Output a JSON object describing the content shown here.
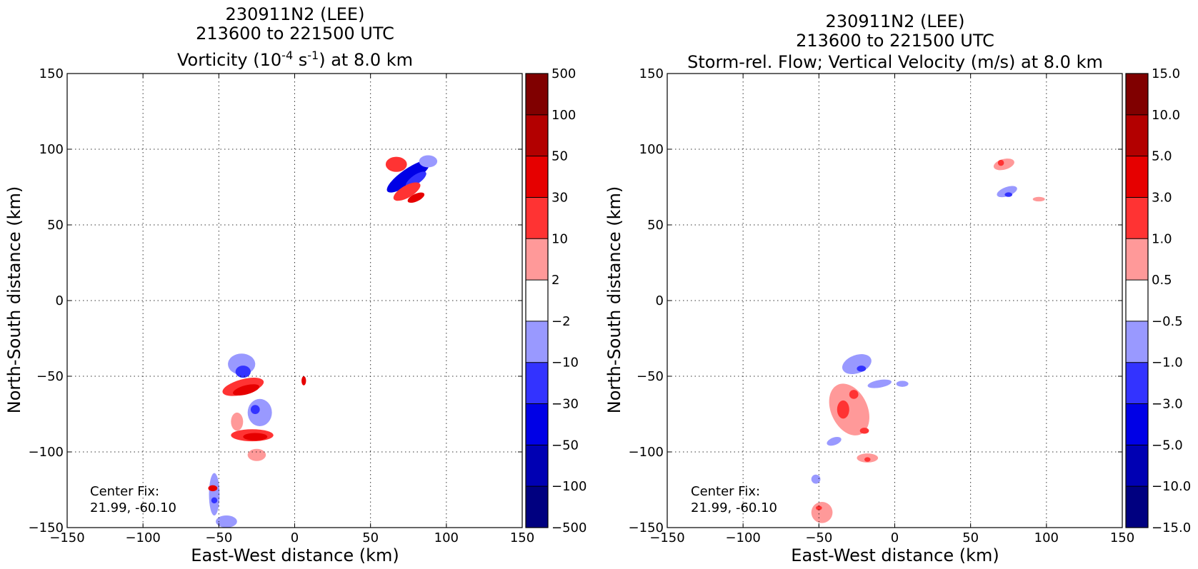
{
  "chart_data": [
    {
      "type": "heatmap",
      "title_lines": [
        "230911N2 (LEE)",
        "213600 to 221500 UTC"
      ],
      "title_line3": {
        "pre": "Vorticity (10",
        "sup1": "-4",
        "mid": " s",
        "sup2": "-1",
        "post": ") at 8.0 km"
      },
      "xlabel": "East-West distance (km)",
      "ylabel": "North-South distance (km)",
      "xlim": [
        -150,
        150
      ],
      "ylim": [
        -150,
        150
      ],
      "xticks": [
        -150,
        -100,
        -50,
        0,
        50,
        100,
        150
      ],
      "yticks": [
        -150,
        -100,
        -50,
        0,
        50,
        100,
        150
      ],
      "xtick_labels": [
        "−150",
        "−100",
        "−50",
        "0",
        "50",
        "100",
        "150"
      ],
      "ytick_labels": [
        "−150",
        "−100",
        "−50",
        "0",
        "50",
        "100",
        "150"
      ],
      "grid": true,
      "colorbar": {
        "levels": [
          "−500",
          "−100",
          "−50",
          "−30",
          "−10",
          "−2",
          "2",
          "10",
          "30",
          "50",
          "100",
          "500"
        ],
        "colors": [
          "#000080",
          "#0000b3",
          "#0000e6",
          "#3333ff",
          "#9999ff",
          "#ffffff",
          "#ff9999",
          "#ff3333",
          "#e60000",
          "#b30000",
          "#800000"
        ]
      },
      "annotation": [
        "Center Fix:",
        "21.99, -60.10"
      ],
      "features": [
        {
          "cx": 75,
          "cy": 82,
          "rx": 17,
          "ry": 5,
          "rot": -35,
          "level": 2
        },
        {
          "cx": 80,
          "cy": 80,
          "rx": 8,
          "ry": 3,
          "rot": -35,
          "level": 3
        },
        {
          "cx": 67,
          "cy": 90,
          "rx": 7,
          "ry": 5,
          "rot": 0,
          "level": 7
        },
        {
          "cx": 74,
          "cy": 72,
          "rx": 10,
          "ry": 4,
          "rot": -30,
          "level": 7
        },
        {
          "cx": 80,
          "cy": 68,
          "rx": 6,
          "ry": 2.5,
          "rot": -25,
          "level": 8
        },
        {
          "cx": 88,
          "cy": 92,
          "rx": 6,
          "ry": 4,
          "rot": 0,
          "level": 4
        },
        {
          "cx": -35,
          "cy": -42,
          "rx": 9,
          "ry": 7,
          "rot": 0,
          "level": 4
        },
        {
          "cx": -34,
          "cy": -47,
          "rx": 5,
          "ry": 4,
          "rot": 0,
          "level": 3
        },
        {
          "cx": -34,
          "cy": -57,
          "rx": 14,
          "ry": 5,
          "rot": -15,
          "level": 7
        },
        {
          "cx": -32,
          "cy": -59,
          "rx": 9,
          "ry": 3,
          "rot": -15,
          "level": 8
        },
        {
          "cx": -23,
          "cy": -74,
          "rx": 8,
          "ry": 9,
          "rot": 0,
          "level": 4
        },
        {
          "cx": -26,
          "cy": -72,
          "rx": 3,
          "ry": 3,
          "rot": 0,
          "level": 3
        },
        {
          "cx": -28,
          "cy": -89,
          "rx": 14,
          "ry": 4,
          "rot": 0,
          "level": 7
        },
        {
          "cx": -26,
          "cy": -90,
          "rx": 8,
          "ry": 2.5,
          "rot": 0,
          "level": 8
        },
        {
          "cx": -25,
          "cy": -102,
          "rx": 6,
          "ry": 4,
          "rot": 0,
          "level": 6
        },
        {
          "cx": -38,
          "cy": -80,
          "rx": 4,
          "ry": 6,
          "rot": 0,
          "level": 6
        },
        {
          "cx": 6,
          "cy": -53,
          "rx": 1.5,
          "ry": 3,
          "rot": 0,
          "level": 8
        },
        {
          "cx": -53,
          "cy": -128,
          "rx": 3.5,
          "ry": 14,
          "rot": 0,
          "level": 4
        },
        {
          "cx": -54,
          "cy": -124,
          "rx": 3,
          "ry": 2,
          "rot": 0,
          "level": 8
        },
        {
          "cx": -53,
          "cy": -132,
          "rx": 2,
          "ry": 2,
          "rot": 0,
          "level": 3
        },
        {
          "cx": -45,
          "cy": -146,
          "rx": 7,
          "ry": 4,
          "rot": 0,
          "level": 4
        }
      ]
    },
    {
      "type": "heatmap",
      "title_lines": [
        "230911N2 (LEE)",
        "213600 to 221500 UTC",
        "Storm-rel. Flow; Vertical Velocity (m/s) at 8.0 km"
      ],
      "xlabel": "East-West distance (km)",
      "ylabel": "North-South distance (km)",
      "xlim": [
        -150,
        150
      ],
      "ylim": [
        -150,
        150
      ],
      "xticks": [
        -150,
        -100,
        -50,
        0,
        50,
        100,
        150
      ],
      "yticks": [
        -150,
        -100,
        -50,
        0,
        50,
        100,
        150
      ],
      "xtick_labels": [
        "−150",
        "−100",
        "−50",
        "0",
        "50",
        "100",
        "150"
      ],
      "ytick_labels": [
        "−150",
        "−100",
        "−50",
        "0",
        "50",
        "100",
        "150"
      ],
      "grid": true,
      "colorbar": {
        "levels": [
          "−15.0",
          "−10.0",
          "−5.0",
          "−3.0",
          "−1.0",
          "−0.5",
          "0.5",
          "1.0",
          "3.0",
          "5.0",
          "10.0",
          "15.0"
        ],
        "colors": [
          "#000080",
          "#0000b3",
          "#0000e6",
          "#3333ff",
          "#9999ff",
          "#ffffff",
          "#ff9999",
          "#ff3333",
          "#e60000",
          "#b30000",
          "#800000"
        ]
      },
      "annotation": [
        "Center Fix:",
        "21.99, -60.10"
      ],
      "features": [
        {
          "cx": 72,
          "cy": 90,
          "rx": 7,
          "ry": 3.5,
          "rot": -15,
          "level": 6
        },
        {
          "cx": 70,
          "cy": 91,
          "rx": 2,
          "ry": 2,
          "rot": 0,
          "level": 7
        },
        {
          "cx": 74,
          "cy": 72,
          "rx": 7,
          "ry": 3,
          "rot": -20,
          "level": 4
        },
        {
          "cx": 75,
          "cy": 70,
          "rx": 2.5,
          "ry": 1.5,
          "rot": 0,
          "level": 3
        },
        {
          "cx": 95,
          "cy": 67,
          "rx": 4,
          "ry": 1.5,
          "rot": 0,
          "level": 6
        },
        {
          "cx": -30,
          "cy": -72,
          "rx": 12,
          "ry": 18,
          "rot": -25,
          "level": 6
        },
        {
          "cx": -34,
          "cy": -72,
          "rx": 4,
          "ry": 6,
          "rot": 0,
          "level": 7
        },
        {
          "cx": -27,
          "cy": -62,
          "rx": 3,
          "ry": 3,
          "rot": 0,
          "level": 7
        },
        {
          "cx": -20,
          "cy": -86,
          "rx": 3,
          "ry": 2,
          "rot": 0,
          "level": 7
        },
        {
          "cx": -25,
          "cy": -42,
          "rx": 10,
          "ry": 6,
          "rot": -20,
          "level": 4
        },
        {
          "cx": -22,
          "cy": -45,
          "rx": 3,
          "ry": 2,
          "rot": 0,
          "level": 3
        },
        {
          "cx": -40,
          "cy": -93,
          "rx": 5,
          "ry": 2.5,
          "rot": -20,
          "level": 4
        },
        {
          "cx": -18,
          "cy": -104,
          "rx": 7,
          "ry": 3,
          "rot": 0,
          "level": 6
        },
        {
          "cx": -18,
          "cy": -105,
          "rx": 2,
          "ry": 1.5,
          "rot": 0,
          "level": 7
        },
        {
          "cx": -10,
          "cy": -55,
          "rx": 8,
          "ry": 2.5,
          "rot": -10,
          "level": 4
        },
        {
          "cx": 5,
          "cy": -55,
          "rx": 4,
          "ry": 2,
          "rot": 0,
          "level": 4
        },
        {
          "cx": -48,
          "cy": -140,
          "rx": 7,
          "ry": 7,
          "rot": 0,
          "level": 6
        },
        {
          "cx": -50,
          "cy": -137,
          "rx": 2,
          "ry": 1.5,
          "rot": 0,
          "level": 7
        },
        {
          "cx": -52,
          "cy": -118,
          "rx": 3,
          "ry": 3,
          "rot": 0,
          "level": 4
        }
      ]
    }
  ]
}
